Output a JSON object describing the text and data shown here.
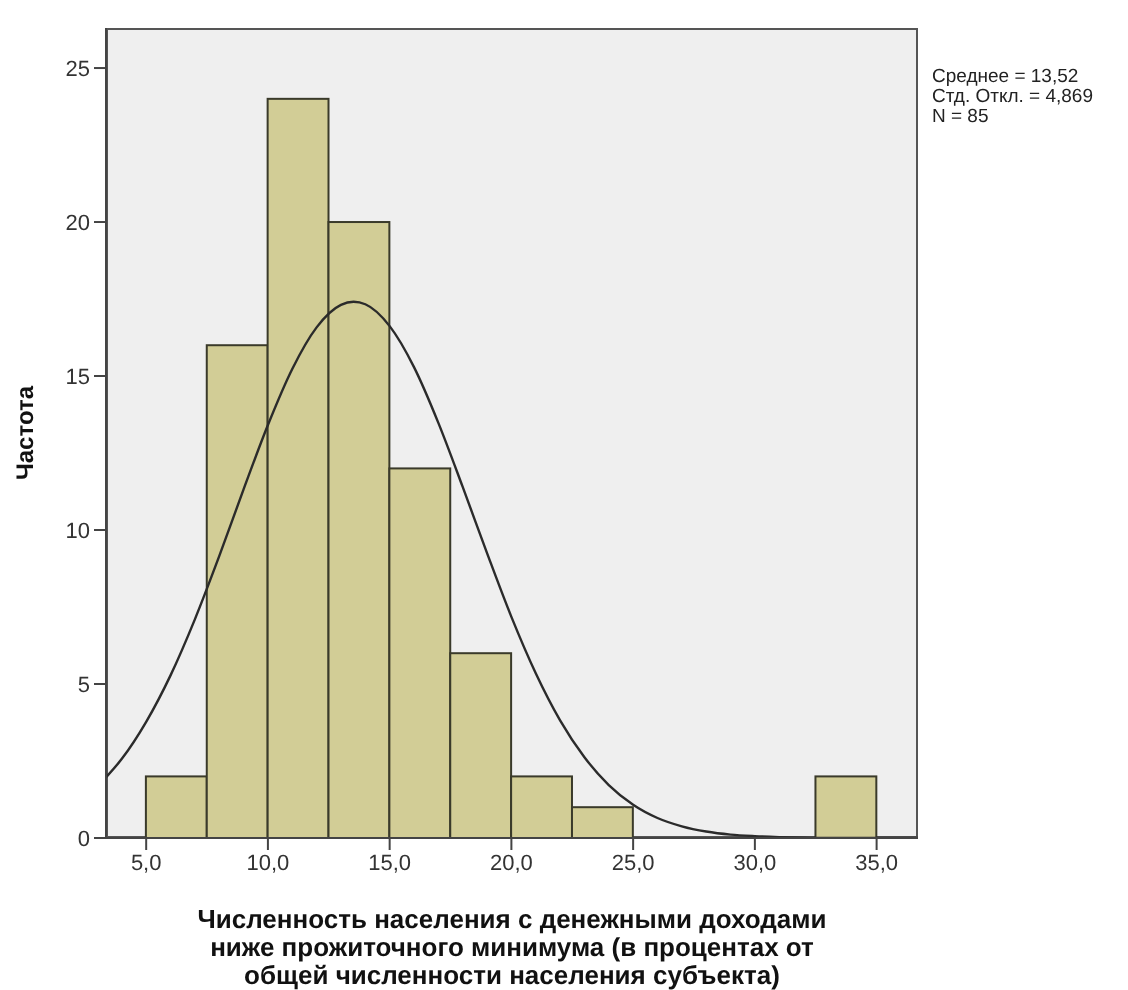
{
  "chart_data": {
    "type": "histogram",
    "xlabel": "Численность населения с денежными доходами ниже прожиточного минимума (в процентах от общей численности населения субъекта)",
    "ylabel": "Частота",
    "bins": [
      5,
      7.5,
      10,
      12.5,
      15,
      17.5,
      20,
      22.5,
      25,
      27.5,
      30,
      32.5,
      35
    ],
    "values": [
      2,
      16,
      24,
      20,
      12,
      6,
      2,
      1,
      0,
      0,
      0,
      2
    ],
    "color": "#d2cd96",
    "series": [
      {
        "type": "line",
        "color": "#2b2b2b",
        "x": [
          3.35,
          4,
          5,
          6,
          7,
          8,
          9,
          10,
          11,
          12,
          13,
          13.52,
          14,
          15,
          16,
          17,
          18,
          19,
          20,
          21,
          22,
          23,
          24,
          25,
          26,
          27,
          28,
          29,
          30,
          31,
          32,
          33,
          34,
          35,
          36,
          36.7
        ],
        "values": [
          1.97,
          2.57,
          3.77,
          5.28,
          7.1,
          9.15,
          11.32,
          13.41,
          15.23,
          16.58,
          17.31,
          17.41,
          17.33,
          16.62,
          15.29,
          13.48,
          11.4,
          9.25,
          7.18,
          5.35,
          3.82,
          2.62,
          1.72,
          1.08,
          0.65,
          0.38,
          0.21,
          0.11,
          0.06,
          0.03,
          0.01,
          0,
          0,
          0,
          0,
          0
        ]
      }
    ],
    "xlim": [
      3.35,
      36.7
    ],
    "ylim": [
      0,
      26.3
    ],
    "xticks": [
      {
        "value": 5,
        "label": "5,0"
      },
      {
        "value": 10,
        "label": "10,0"
      },
      {
        "value": 15,
        "label": "15,0"
      },
      {
        "value": 20,
        "label": "20,0"
      },
      {
        "value": 25,
        "label": "25,0"
      },
      {
        "value": 30,
        "label": "30,0"
      },
      {
        "value": 35,
        "label": "35,0"
      }
    ],
    "yticks": [
      0,
      5,
      10,
      15,
      20,
      25
    ],
    "annotations": [
      "Среднее = 13,52",
      "Стд. Откл. = 4,869",
      "N = 85"
    ]
  }
}
